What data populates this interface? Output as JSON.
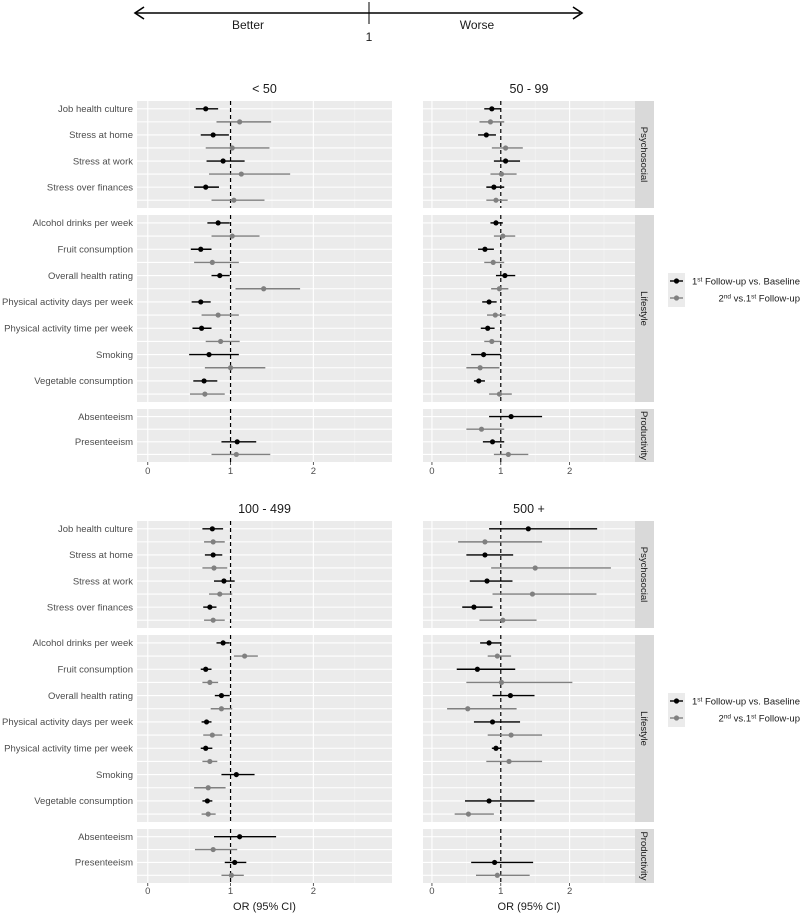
{
  "header": {
    "left_label": "Better",
    "right_label": "Worse",
    "center_label": "1"
  },
  "chart_data": {
    "type": "forest",
    "xlabel": "OR (95% CI)",
    "xlim": [
      -0.13,
      2.95
    ],
    "xticks": [
      "0",
      "1",
      "2"
    ],
    "reference_line": 1,
    "grid": true,
    "legend_placement": "right",
    "series": [
      {
        "name": "1st Follow-up vs. Baseline",
        "color": "#000000"
      },
      {
        "name": "2nd vs.1st Follow-up",
        "color": "#808080"
      }
    ],
    "groups": [
      {
        "name": "Psychosocial",
        "items": [
          "Job health culture",
          "Stress at home",
          "Stress at work",
          "Stress over finances"
        ]
      },
      {
        "name": "Lifestyle",
        "items": [
          "Alcohol drinks per week",
          "Fruit consumption",
          "Overall health rating",
          "Physical activity days per week",
          "Physical activity time per week",
          "Smoking",
          "Vegetable consumption"
        ]
      },
      {
        "name": "Productivity",
        "items": [
          "Absenteeism",
          "Presenteeism"
        ]
      }
    ],
    "value_format": "[estimate, lower, upper] per series, items in group order",
    "panels": [
      {
        "title": "< 50",
        "values": [
          [
            [
              0.7,
              0.58,
              0.85
            ],
            [
              1.11,
              0.83,
              1.49
            ]
          ],
          [
            [
              0.79,
              0.64,
              0.98
            ],
            [
              1.02,
              0.7,
              1.47
            ]
          ],
          [
            [
              0.91,
              0.71,
              1.17
            ],
            [
              1.13,
              0.74,
              1.72
            ]
          ],
          [
            [
              0.7,
              0.56,
              0.86
            ],
            [
              1.04,
              0.77,
              1.41
            ]
          ],
          [
            [
              0.85,
              0.72,
              0.99
            ],
            [
              1.02,
              0.77,
              1.35
            ]
          ],
          [
            [
              0.64,
              0.52,
              0.77
            ],
            [
              0.78,
              0.56,
              1.1
            ]
          ],
          [
            [
              0.87,
              0.77,
              0.99
            ],
            [
              1.4,
              1.06,
              1.84
            ]
          ],
          [
            [
              0.64,
              0.53,
              0.76
            ],
            [
              0.85,
              0.65,
              1.1
            ]
          ],
          [
            [
              0.65,
              0.54,
              0.77
            ],
            [
              0.88,
              0.7,
              1.11
            ]
          ],
          [
            [
              0.74,
              0.5,
              1.1
            ],
            [
              1.0,
              0.69,
              1.42
            ]
          ],
          [
            [
              0.68,
              0.55,
              0.84
            ],
            [
              0.69,
              0.51,
              0.93
            ]
          ],
          [
            null,
            null
          ],
          [
            [
              1.08,
              0.89,
              1.31
            ],
            [
              1.07,
              0.77,
              1.48
            ]
          ]
        ]
      },
      {
        "title": "50 - 99",
        "values": [
          [
            [
              0.87,
              0.76,
              1.0
            ],
            [
              0.85,
              0.69,
              1.05
            ]
          ],
          [
            [
              0.79,
              0.67,
              0.93
            ],
            [
              1.07,
              0.87,
              1.32
            ]
          ],
          [
            [
              1.07,
              0.9,
              1.28
            ],
            [
              1.01,
              0.85,
              1.23
            ]
          ],
          [
            [
              0.9,
              0.79,
              1.05
            ],
            [
              0.93,
              0.79,
              1.1
            ]
          ],
          [
            [
              0.93,
              0.85,
              1.03
            ],
            [
              1.03,
              0.9,
              1.21
            ]
          ],
          [
            [
              0.77,
              0.67,
              0.9
            ],
            [
              0.89,
              0.76,
              1.05
            ]
          ],
          [
            [
              1.06,
              0.93,
              1.21
            ],
            [
              0.98,
              0.86,
              1.11
            ]
          ],
          [
            [
              0.83,
              0.73,
              0.94
            ],
            [
              0.92,
              0.8,
              1.07
            ]
          ],
          [
            [
              0.81,
              0.71,
              0.91
            ],
            [
              0.87,
              0.76,
              1.0
            ]
          ],
          [
            [
              0.75,
              0.57,
              1.0
            ],
            [
              0.7,
              0.5,
              0.98
            ]
          ],
          [
            [
              0.68,
              0.61,
              0.77
            ],
            [
              0.98,
              0.83,
              1.16
            ]
          ],
          [
            [
              1.15,
              0.83,
              1.6
            ],
            [
              0.72,
              0.5,
              1.05
            ]
          ],
          [
            [
              0.88,
              0.74,
              1.05
            ],
            [
              1.11,
              0.9,
              1.4
            ]
          ]
        ]
      },
      {
        "title": "100 - 499",
        "values": [
          [
            [
              0.78,
              0.66,
              0.91
            ],
            [
              0.79,
              0.68,
              0.93
            ]
          ],
          [
            [
              0.79,
              0.69,
              0.9
            ],
            [
              0.8,
              0.66,
              0.96
            ]
          ],
          [
            [
              0.92,
              0.8,
              1.05
            ],
            [
              0.87,
              0.74,
              1.02
            ]
          ],
          [
            [
              0.75,
              0.67,
              0.83
            ],
            [
              0.79,
              0.68,
              0.93
            ]
          ],
          [
            [
              0.91,
              0.83,
              0.99
            ],
            [
              1.17,
              1.04,
              1.33
            ]
          ],
          [
            [
              0.7,
              0.64,
              0.77
            ],
            [
              0.75,
              0.66,
              0.85
            ]
          ],
          [
            [
              0.89,
              0.81,
              0.99
            ],
            [
              0.89,
              0.76,
              1.02
            ]
          ],
          [
            [
              0.71,
              0.65,
              0.77
            ],
            [
              0.78,
              0.67,
              0.9
            ]
          ],
          [
            [
              0.7,
              0.64,
              0.78
            ],
            [
              0.75,
              0.66,
              0.84
            ]
          ],
          [
            [
              1.07,
              0.89,
              1.29
            ],
            [
              0.73,
              0.56,
              0.94
            ]
          ],
          [
            [
              0.72,
              0.66,
              0.78
            ],
            [
              0.73,
              0.65,
              0.82
            ]
          ],
          [
            [
              1.11,
              0.8,
              1.55
            ],
            [
              0.79,
              0.57,
              1.08
            ]
          ],
          [
            [
              1.05,
              0.93,
              1.19
            ],
            [
              1.01,
              0.89,
              1.16
            ]
          ]
        ]
      },
      {
        "title": "500 +",
        "values": [
          [
            [
              1.4,
              0.83,
              2.4
            ],
            [
              0.77,
              0.38,
              1.6
            ]
          ],
          [
            [
              0.77,
              0.5,
              1.18
            ],
            [
              1.5,
              0.86,
              2.6
            ]
          ],
          [
            [
              0.8,
              0.55,
              1.17
            ],
            [
              1.46,
              0.88,
              2.39
            ]
          ],
          [
            [
              0.61,
              0.44,
              0.88
            ],
            [
              1.03,
              0.69,
              1.52
            ]
          ],
          [
            [
              0.83,
              0.7,
              0.99
            ],
            [
              0.95,
              0.81,
              1.15
            ]
          ],
          [
            [
              0.66,
              0.36,
              1.21
            ],
            [
              1.01,
              0.5,
              2.04
            ]
          ],
          [
            [
              1.14,
              0.88,
              1.49
            ],
            [
              0.52,
              0.22,
              1.23
            ]
          ],
          [
            [
              0.88,
              0.61,
              1.28
            ],
            [
              1.15,
              0.81,
              1.6
            ]
          ],
          [
            [
              0.93,
              0.87,
              1.0
            ],
            [
              1.12,
              0.79,
              1.6
            ]
          ],
          [
            null,
            null
          ],
          [
            [
              0.83,
              0.48,
              1.49
            ],
            [
              0.53,
              0.33,
              0.9
            ]
          ],
          [
            null,
            null
          ],
          [
            [
              0.91,
              0.57,
              1.47
            ],
            [
              0.95,
              0.64,
              1.42
            ]
          ]
        ]
      }
    ]
  }
}
